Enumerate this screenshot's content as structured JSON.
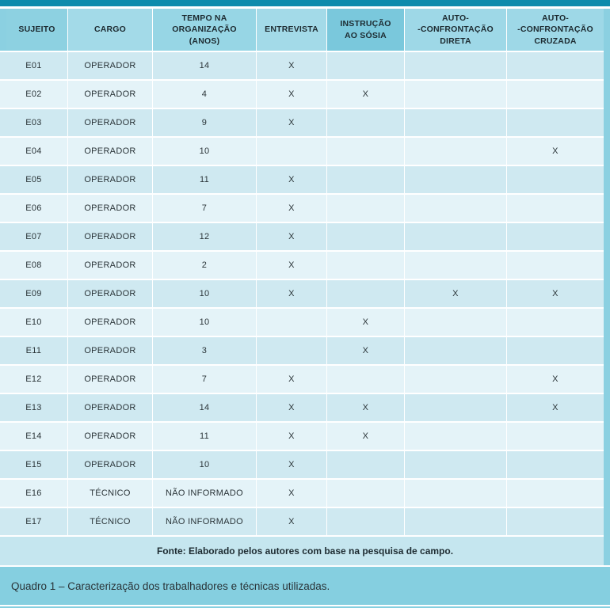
{
  "palette": {
    "top_accent": "#0d8bac",
    "frame_blue": "#8bd0e1",
    "header_base": "#8dd1e1",
    "header_highlight": "#7ac8dc",
    "row_odd": "#cfe9f1",
    "row_even": "#e4f3f8",
    "fonte_bar": "#c5e6ef",
    "caption_bar": "#85cfe0"
  },
  "table": {
    "columns": [
      {
        "key": "id",
        "label": "SUJEITO"
      },
      {
        "key": "cargo",
        "label": "CARGO"
      },
      {
        "key": "tempo",
        "label": "TEMPO NA\nORGANIZAÇÃO\n(ANOS)"
      },
      {
        "key": "entrevista",
        "label": "ENTREVISTA"
      },
      {
        "key": "sosia",
        "label": "INSTRUÇÃO\nAO SÓSIA"
      },
      {
        "key": "direta",
        "label": "AUTO-\n-CONFRONTAÇÃO\nDIRETA"
      },
      {
        "key": "cruzada",
        "label": "AUTO-\n-CONFRONTAÇÃO\nCRUZADA"
      }
    ],
    "rows": [
      {
        "id": "E01",
        "cargo": "OPERADOR",
        "tempo": "14",
        "entrevista": "X",
        "sosia": "",
        "direta": "",
        "cruzada": ""
      },
      {
        "id": "E02",
        "cargo": "OPERADOR",
        "tempo": "4",
        "entrevista": "X",
        "sosia": "X",
        "direta": "",
        "cruzada": ""
      },
      {
        "id": "E03",
        "cargo": "OPERADOR",
        "tempo": "9",
        "entrevista": "X",
        "sosia": "",
        "direta": "",
        "cruzada": ""
      },
      {
        "id": "E04",
        "cargo": "OPERADOR",
        "tempo": "10",
        "entrevista": "",
        "sosia": "",
        "direta": "",
        "cruzada": "X"
      },
      {
        "id": "E05",
        "cargo": "OPERADOR",
        "tempo": "11",
        "entrevista": "X",
        "sosia": "",
        "direta": "",
        "cruzada": ""
      },
      {
        "id": "E06",
        "cargo": "OPERADOR",
        "tempo": "7",
        "entrevista": "X",
        "sosia": "",
        "direta": "",
        "cruzada": ""
      },
      {
        "id": "E07",
        "cargo": "OPERADOR",
        "tempo": "12",
        "entrevista": "X",
        "sosia": "",
        "direta": "",
        "cruzada": ""
      },
      {
        "id": "E08",
        "cargo": "OPERADOR",
        "tempo": "2",
        "entrevista": "X",
        "sosia": "",
        "direta": "",
        "cruzada": ""
      },
      {
        "id": "E09",
        "cargo": "OPERADOR",
        "tempo": "10",
        "entrevista": "X",
        "sosia": "",
        "direta": "X",
        "cruzada": "X"
      },
      {
        "id": "E10",
        "cargo": "OPERADOR",
        "tempo": "10",
        "entrevista": "",
        "sosia": "X",
        "direta": "",
        "cruzada": ""
      },
      {
        "id": "E11",
        "cargo": "OPERADOR",
        "tempo": "3",
        "entrevista": "",
        "sosia": "X",
        "direta": "",
        "cruzada": ""
      },
      {
        "id": "E12",
        "cargo": "OPERADOR",
        "tempo": "7",
        "entrevista": "X",
        "sosia": "",
        "direta": "",
        "cruzada": "X"
      },
      {
        "id": "E13",
        "cargo": "OPERADOR",
        "tempo": "14",
        "entrevista": "X",
        "sosia": "X",
        "direta": "",
        "cruzada": "X"
      },
      {
        "id": "E14",
        "cargo": "OPERADOR",
        "tempo": "11",
        "entrevista": "X",
        "sosia": "X",
        "direta": "",
        "cruzada": ""
      },
      {
        "id": "E15",
        "cargo": "OPERADOR",
        "tempo": "10",
        "entrevista": "X",
        "sosia": "",
        "direta": "",
        "cruzada": ""
      },
      {
        "id": "E16",
        "cargo": "TÉCNICO",
        "tempo": "NÃO INFORMADO",
        "entrevista": "X",
        "sosia": "",
        "direta": "",
        "cruzada": ""
      },
      {
        "id": "E17",
        "cargo": "TÉCNICO",
        "tempo": "NÃO INFORMADO",
        "entrevista": "X",
        "sosia": "",
        "direta": "",
        "cruzada": ""
      }
    ],
    "fonte": "Fonte: Elaborado pelos autores com base na pesquisa de campo."
  },
  "caption": "Quadro 1 – Caracterização dos trabalhadores e técnicas utilizadas.",
  "chart_data": {
    "type": "table",
    "title": "Quadro 1 – Caracterização dos trabalhadores e técnicas utilizadas.",
    "columns": [
      "SUJEITO",
      "CARGO",
      "TEMPO NA ORGANIZAÇÃO (ANOS)",
      "ENTREVISTA",
      "INSTRUÇÃO AO SÓSIA",
      "AUTO--CONFRONTAÇÃO DIRETA",
      "AUTO--CONFRONTAÇÃO CRUZADA"
    ],
    "rows": [
      [
        "E01",
        "OPERADOR",
        "14",
        "X",
        "",
        "",
        ""
      ],
      [
        "E02",
        "OPERADOR",
        "4",
        "X",
        "X",
        "",
        ""
      ],
      [
        "E03",
        "OPERADOR",
        "9",
        "X",
        "",
        "",
        ""
      ],
      [
        "E04",
        "OPERADOR",
        "10",
        "",
        "",
        "",
        "X"
      ],
      [
        "E05",
        "OPERADOR",
        "11",
        "X",
        "",
        "",
        ""
      ],
      [
        "E06",
        "OPERADOR",
        "7",
        "X",
        "",
        "",
        ""
      ],
      [
        "E07",
        "OPERADOR",
        "12",
        "X",
        "",
        "",
        ""
      ],
      [
        "E08",
        "OPERADOR",
        "2",
        "X",
        "",
        "",
        ""
      ],
      [
        "E09",
        "OPERADOR",
        "10",
        "X",
        "",
        "X",
        "X"
      ],
      [
        "E10",
        "OPERADOR",
        "10",
        "",
        "X",
        "",
        ""
      ],
      [
        "E11",
        "OPERADOR",
        "3",
        "",
        "X",
        "",
        ""
      ],
      [
        "E12",
        "OPERADOR",
        "7",
        "X",
        "",
        "",
        "X"
      ],
      [
        "E13",
        "OPERADOR",
        "14",
        "X",
        "X",
        "",
        "X"
      ],
      [
        "E14",
        "OPERADOR",
        "11",
        "X",
        "X",
        "",
        ""
      ],
      [
        "E15",
        "OPERADOR",
        "10",
        "X",
        "",
        "",
        ""
      ],
      [
        "E16",
        "TÉCNICO",
        "NÃO INFORMADO",
        "X",
        "",
        "",
        ""
      ],
      [
        "E17",
        "TÉCNICO",
        "NÃO INFORMADO",
        "X",
        "",
        "",
        ""
      ]
    ],
    "footnote": "Fonte: Elaborado pelos autores com base na pesquisa de campo."
  }
}
